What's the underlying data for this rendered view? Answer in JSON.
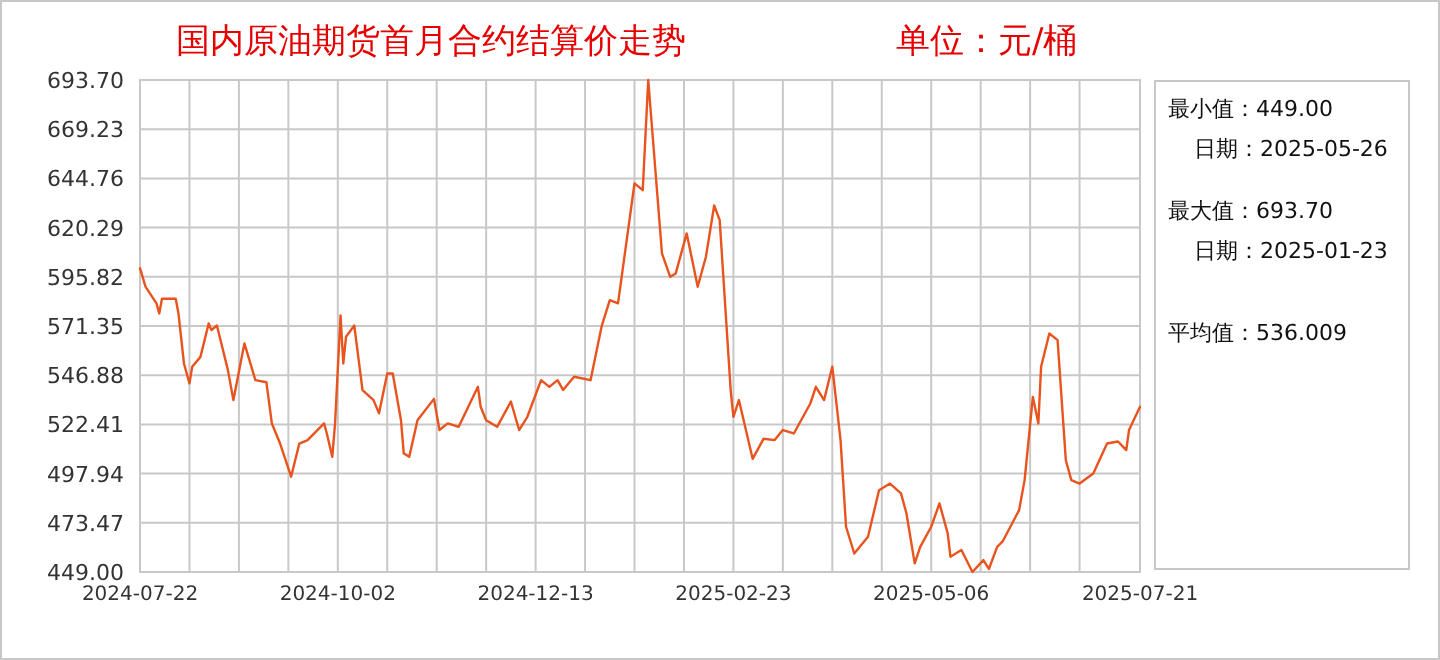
{
  "chart_data": {
    "type": "line",
    "title": "国内原油期货首月合约结算价走势",
    "subtitle": "单位：元/桶",
    "annotations": [
      "最小值：449.00",
      "日期：2025-05-26",
      "最大值：693.70",
      "日期：2025-01-23",
      "平均值：536.009"
    ],
    "x": [
      "2024-07-22",
      "2024-07-24",
      "2024-07-28",
      "2024-07-29",
      "2024-07-30",
      "2024-08-04",
      "2024-08-05",
      "2024-08-07",
      "2024-08-09",
      "2024-08-10",
      "2024-08-13",
      "2024-08-16",
      "2024-08-17",
      "2024-08-19",
      "2024-08-23",
      "2024-08-25",
      "2024-08-29",
      "2024-09-02",
      "2024-09-06",
      "2024-09-08",
      "2024-09-11",
      "2024-09-15",
      "2024-09-18",
      "2024-09-21",
      "2024-09-27",
      "2024-09-28",
      "2024-09-30",
      "2024-10-01",
      "2024-10-03",
      "2024-10-04",
      "2024-10-05",
      "2024-10-08",
      "2024-10-11",
      "2024-10-15",
      "2024-10-17",
      "2024-10-20",
      "2024-10-22",
      "2024-10-25",
      "2024-10-26",
      "2024-10-28",
      "2024-10-31",
      "2024-11-06",
      "2024-11-08",
      "2024-11-11",
      "2024-11-15",
      "2024-11-22",
      "2024-11-23",
      "2024-11-25",
      "2024-11-29",
      "2024-12-04",
      "2024-12-07",
      "2024-12-10",
      "2024-12-15",
      "2024-12-18",
      "2024-12-21",
      "2024-12-23",
      "2024-12-27",
      "2025-01-02",
      "2025-01-06",
      "2025-01-09",
      "2025-01-12",
      "2025-01-18",
      "2025-01-21",
      "2025-01-23",
      "2025-01-28",
      "2025-01-31",
      "2025-02-02",
      "2025-02-06",
      "2025-02-10",
      "2025-02-13",
      "2025-02-16",
      "2025-02-18",
      "2025-02-22",
      "2025-02-23",
      "2025-02-25",
      "2025-03-02",
      "2025-03-06",
      "2025-03-10",
      "2025-03-13",
      "2025-03-17",
      "2025-03-23",
      "2025-03-25",
      "2025-03-28",
      "2025-03-31",
      "2025-04-03",
      "2025-04-05",
      "2025-04-08",
      "2025-04-13",
      "2025-04-17",
      "2025-04-21",
      "2025-04-25",
      "2025-04-27",
      "2025-04-30",
      "2025-05-02",
      "2025-05-06",
      "2025-05-09",
      "2025-05-12",
      "2025-05-13",
      "2025-05-17",
      "2025-05-21",
      "2025-05-25",
      "2025-05-27",
      "2025-05-30",
      "2025-06-01",
      "2025-06-07",
      "2025-06-09",
      "2025-06-12",
      "2025-06-14",
      "2025-06-15",
      "2025-06-18",
      "2025-06-21",
      "2025-06-24",
      "2025-06-26",
      "2025-06-29",
      "2025-07-04",
      "2025-07-09",
      "2025-07-13",
      "2025-07-16",
      "2025-07-17",
      "2025-07-21"
    ],
    "series": [
      {
        "color": "#e8531e",
        "values": [
          600.1,
          590.9,
          582.6,
          577.6,
          584.9,
          584.9,
          577.6,
          552.7,
          542.8,
          551.1,
          556.0,
          572.6,
          569.3,
          571.6,
          549.4,
          534.5,
          562.7,
          544.4,
          543.4,
          522.9,
          512.9,
          496.4,
          512.9,
          514.6,
          522.9,
          517.9,
          506.3,
          522.9,
          576.6,
          552.7,
          566.0,
          571.6,
          539.5,
          534.5,
          527.9,
          547.7,
          547.7,
          524.5,
          508.0,
          506.3,
          524.5,
          535.1,
          519.6,
          522.9,
          521.2,
          541.1,
          531.2,
          524.5,
          521.2,
          533.8,
          519.6,
          526.2,
          544.4,
          541.1,
          544.4,
          539.5,
          546.1,
          544.4,
          571.0,
          584.2,
          582.6,
          642.3,
          638.9,
          693.7,
          607.4,
          595.8,
          597.5,
          617.4,
          590.9,
          605.8,
          631.3,
          624.0,
          539.5,
          526.2,
          534.5,
          505.3,
          515.3,
          514.6,
          519.6,
          517.9,
          532.8,
          541.1,
          534.5,
          551.1,
          514.6,
          471.5,
          458.2,
          466.5,
          489.7,
          493.0,
          488.1,
          478.1,
          453.3,
          461.5,
          471.5,
          483.1,
          468.2,
          456.6,
          459.9,
          449.0,
          454.9,
          450.5,
          461.5,
          464.2,
          479.8,
          494.7,
          536.1,
          522.9,
          551.1,
          567.6,
          564.3,
          504.6,
          494.7,
          493.0,
          498.0,
          512.9,
          513.9,
          509.6,
          519.6,
          531.2
        ]
      }
    ],
    "xlim": [
      "2024-07-22",
      "2025-07-21"
    ],
    "xticks": [
      {
        "value": "2024-07-22",
        "label": "2024-07-22"
      },
      {
        "value": "2024-08-09",
        "label": null
      },
      {
        "value": "2024-08-27",
        "label": null
      },
      {
        "value": "2024-09-14",
        "label": null
      },
      {
        "value": "2024-10-02",
        "label": "2024-10-02"
      },
      {
        "value": "2024-10-20",
        "label": null
      },
      {
        "value": "2024-11-07",
        "label": null
      },
      {
        "value": "2024-11-25",
        "label": null
      },
      {
        "value": "2024-12-13",
        "label": "2024-12-13"
      },
      {
        "value": "2024-12-31",
        "label": null
      },
      {
        "value": "2025-01-18",
        "label": null
      },
      {
        "value": "2025-02-05",
        "label": null
      },
      {
        "value": "2025-02-23",
        "label": "2025-02-23"
      },
      {
        "value": "2025-03-13",
        "label": null
      },
      {
        "value": "2025-03-31",
        "label": null
      },
      {
        "value": "2025-04-18",
        "label": null
      },
      {
        "value": "2025-05-06",
        "label": "2025-05-06"
      },
      {
        "value": "2025-05-24",
        "label": null
      },
      {
        "value": "2025-06-11",
        "label": null
      },
      {
        "value": "2025-06-29",
        "label": null
      },
      {
        "value": "2025-07-21",
        "label": "2025-07-21"
      }
    ],
    "ylim": [
      449,
      693.7
    ],
    "yticks": [
      {
        "value": 449,
        "label": "449.00"
      },
      {
        "value": 473.47,
        "label": "473.47"
      },
      {
        "value": 497.94,
        "label": "497.94"
      },
      {
        "value": 522.41,
        "label": "522.41"
      },
      {
        "value": 546.88,
        "label": "546.88"
      },
      {
        "value": 571.35,
        "label": "571.35"
      },
      {
        "value": 595.82,
        "label": "595.82"
      },
      {
        "value": 620.29,
        "label": "620.29"
      },
      {
        "value": 644.76,
        "label": "644.76"
      },
      {
        "value": 669.23,
        "label": "669.23"
      },
      {
        "value": 693.7,
        "label": "693.70"
      }
    ],
    "grid": true,
    "marker": "none",
    "line_style": "solid"
  }
}
